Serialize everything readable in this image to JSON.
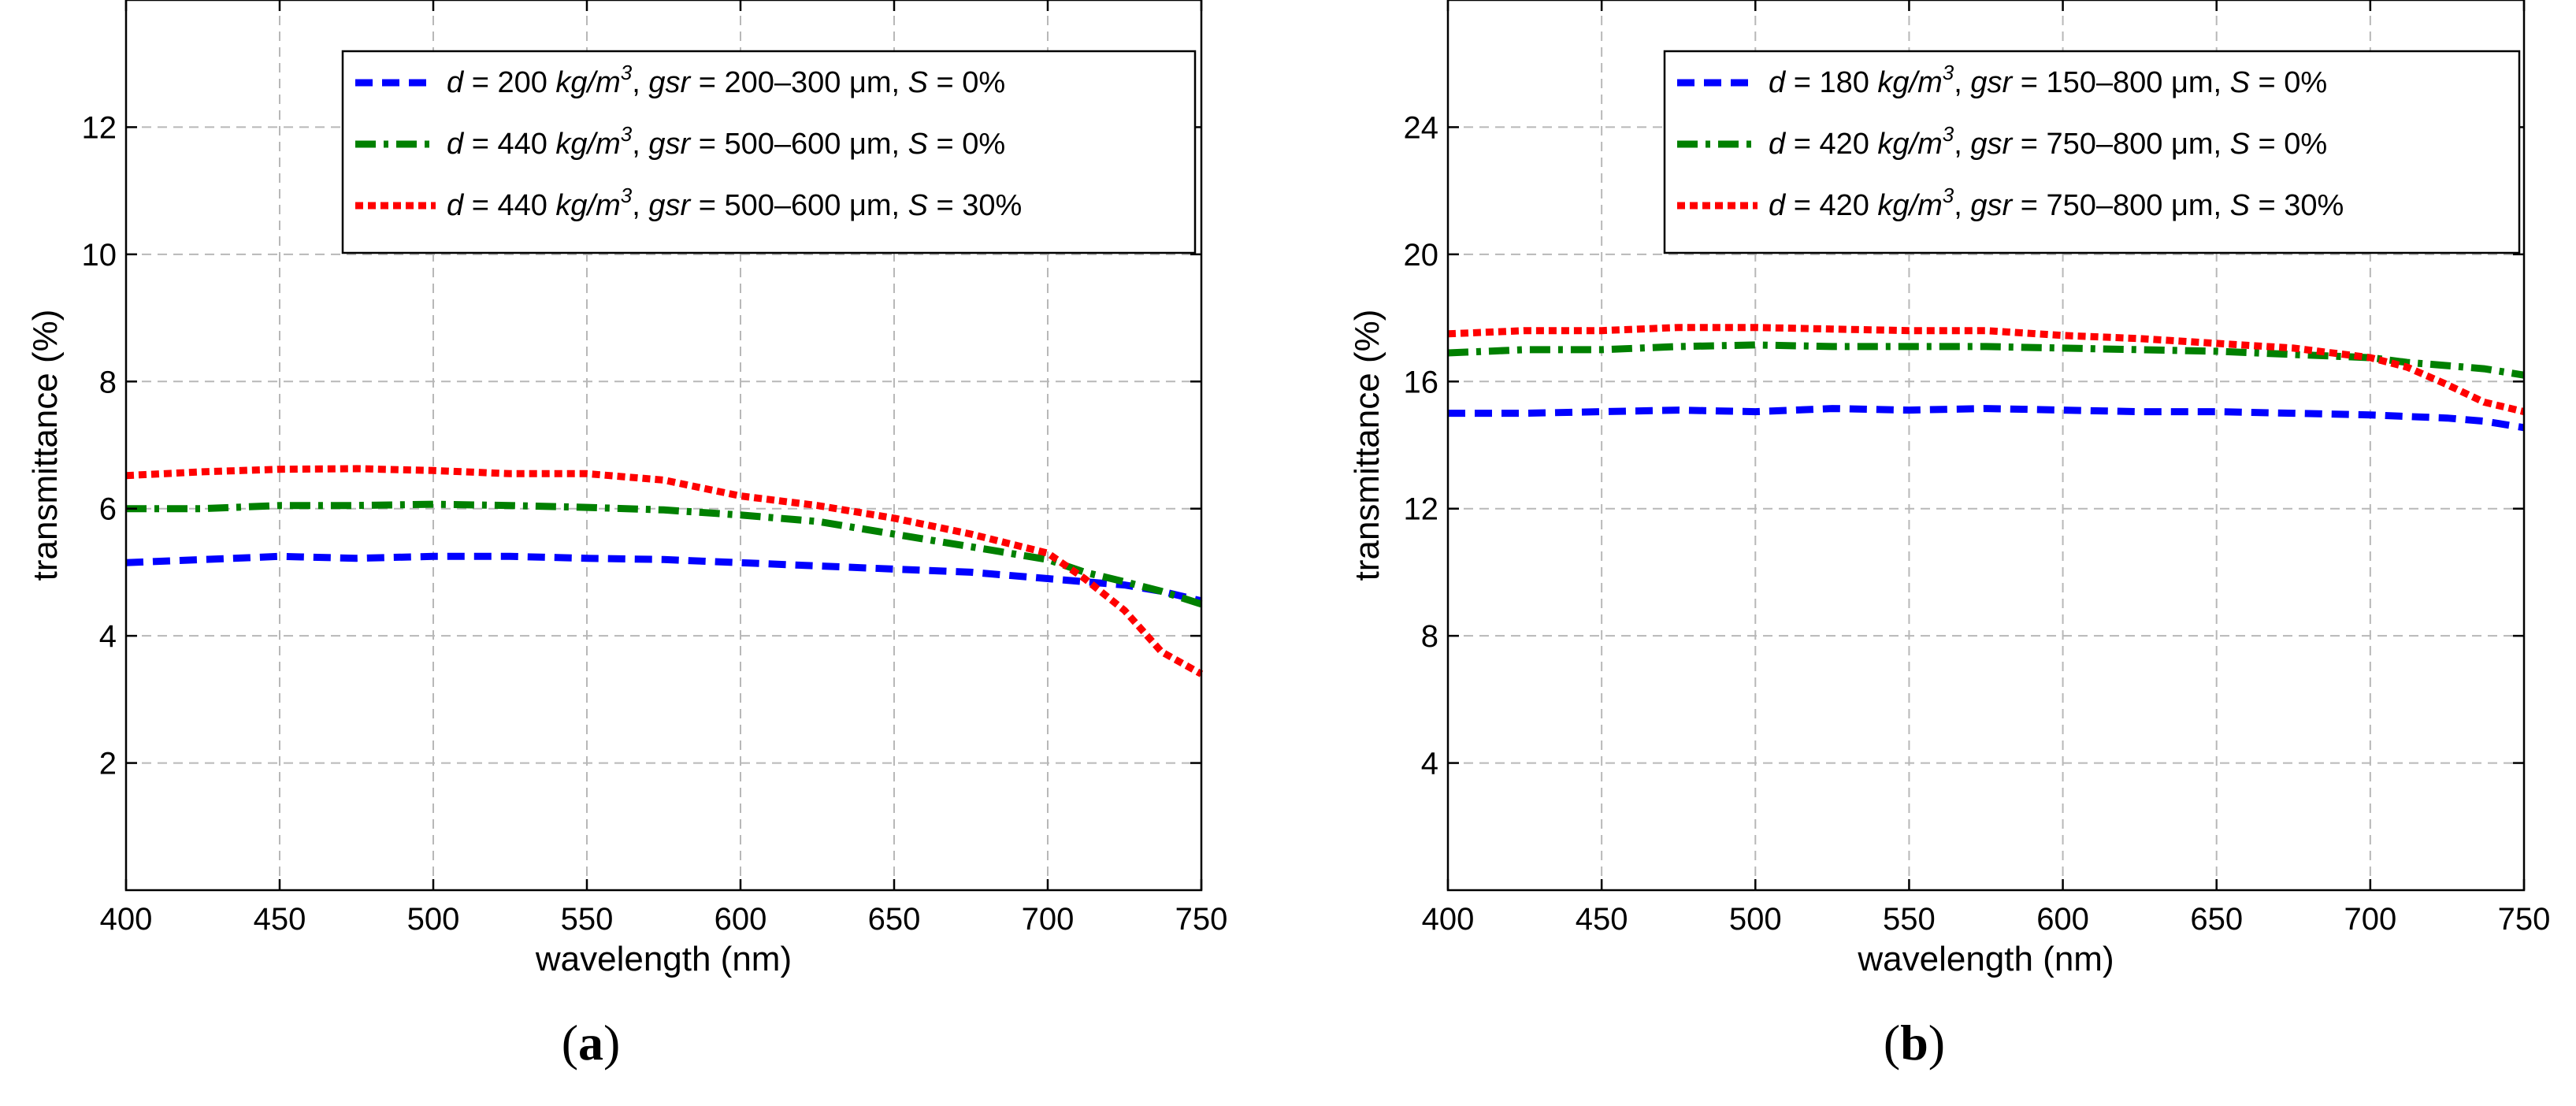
{
  "chart_data": [
    {
      "type": "line",
      "caption": "(a)",
      "xlabel": "wavelength (nm)",
      "ylabel": "transmittance (%)",
      "xlim": [
        400,
        750
      ],
      "ylim": [
        0,
        14
      ],
      "xticks": [
        400,
        450,
        500,
        550,
        600,
        650,
        700,
        750
      ],
      "yticks": [
        2,
        4,
        6,
        8,
        10,
        12
      ],
      "grid": true,
      "legend_position": "top-right",
      "x": [
        400,
        425,
        450,
        475,
        500,
        525,
        550,
        575,
        600,
        625,
        650,
        675,
        700,
        712,
        725,
        737,
        750
      ],
      "series": [
        {
          "name": "d = 200 kg/m3, gsr = 200–300 μm, S = 0%",
          "color": "#0000ff",
          "style": "dashed",
          "values": [
            5.15,
            5.2,
            5.25,
            5.22,
            5.25,
            5.25,
            5.22,
            5.2,
            5.15,
            5.1,
            5.05,
            5.0,
            4.9,
            4.85,
            4.8,
            4.7,
            4.55
          ]
        },
        {
          "name": "d = 440 kg/m3, gsr = 500–600 μm, S = 0%",
          "color": "#008000",
          "style": "dashdot",
          "values": [
            6.0,
            6.0,
            6.05,
            6.05,
            6.07,
            6.05,
            6.02,
            5.98,
            5.9,
            5.8,
            5.6,
            5.4,
            5.2,
            5.0,
            4.85,
            4.7,
            4.5
          ]
        },
        {
          "name": "d = 440 kg/m3, gsr = 500–600 μm, S = 30%",
          "color": "#ff0000",
          "style": "dotted",
          "values": [
            6.52,
            6.58,
            6.62,
            6.63,
            6.6,
            6.55,
            6.55,
            6.45,
            6.2,
            6.05,
            5.85,
            5.6,
            5.3,
            4.9,
            4.4,
            3.75,
            3.4
          ]
        }
      ]
    },
    {
      "type": "line",
      "caption": "(b)",
      "xlabel": "wavelength (nm)",
      "ylabel": "transmittance (%)",
      "xlim": [
        400,
        750
      ],
      "ylim": [
        0,
        28
      ],
      "xticks": [
        400,
        450,
        500,
        550,
        600,
        650,
        700,
        750
      ],
      "yticks": [
        4,
        8,
        12,
        16,
        20,
        24
      ],
      "grid": true,
      "legend_position": "top-right",
      "x": [
        400,
        425,
        450,
        475,
        500,
        525,
        550,
        575,
        600,
        625,
        650,
        675,
        700,
        712,
        725,
        737,
        750
      ],
      "series": [
        {
          "name": "d = 180 kg/m3, gsr = 150–800 μm, S = 0%",
          "color": "#0000ff",
          "style": "dashed",
          "values": [
            15.0,
            15.0,
            15.05,
            15.1,
            15.05,
            15.15,
            15.1,
            15.15,
            15.1,
            15.05,
            15.05,
            15.0,
            14.95,
            14.9,
            14.85,
            14.75,
            14.55
          ]
        },
        {
          "name": "d = 420 kg/m3, gsr = 750–800 μm, S = 0%",
          "color": "#008000",
          "style": "dashdot",
          "values": [
            16.9,
            17.0,
            17.0,
            17.1,
            17.15,
            17.1,
            17.1,
            17.1,
            17.05,
            17.0,
            16.95,
            16.85,
            16.75,
            16.6,
            16.5,
            16.4,
            16.2
          ]
        },
        {
          "name": "d = 420 kg/m3, gsr = 750–800 μm, S = 30%",
          "color": "#ff0000",
          "style": "dotted",
          "values": [
            17.5,
            17.6,
            17.6,
            17.7,
            17.7,
            17.65,
            17.6,
            17.6,
            17.45,
            17.35,
            17.2,
            17.05,
            16.75,
            16.45,
            15.9,
            15.35,
            15.05
          ]
        }
      ]
    }
  ],
  "panels": [
    {
      "legend": [
        {
          "d": "200",
          "gsr": "200–300",
          "S": "0%"
        },
        {
          "d": "440",
          "gsr": "500–600",
          "S": "0%"
        },
        {
          "d": "440",
          "gsr": "500–600",
          "S": "30%"
        }
      ]
    },
    {
      "legend": [
        {
          "d": "180",
          "gsr": "150–800",
          "S": "0%"
        },
        {
          "d": "420",
          "gsr": "750–800",
          "S": "0%"
        },
        {
          "d": "420",
          "gsr": "750–800",
          "S": "30%"
        }
      ]
    }
  ],
  "legend_units": {
    "d_symbol": "d",
    "density_unit": "kg/m",
    "density_exp": "3",
    "gsr_symbol": "gsr",
    "size_unit": "μm",
    "S_symbol": "S",
    "eq": " = "
  }
}
